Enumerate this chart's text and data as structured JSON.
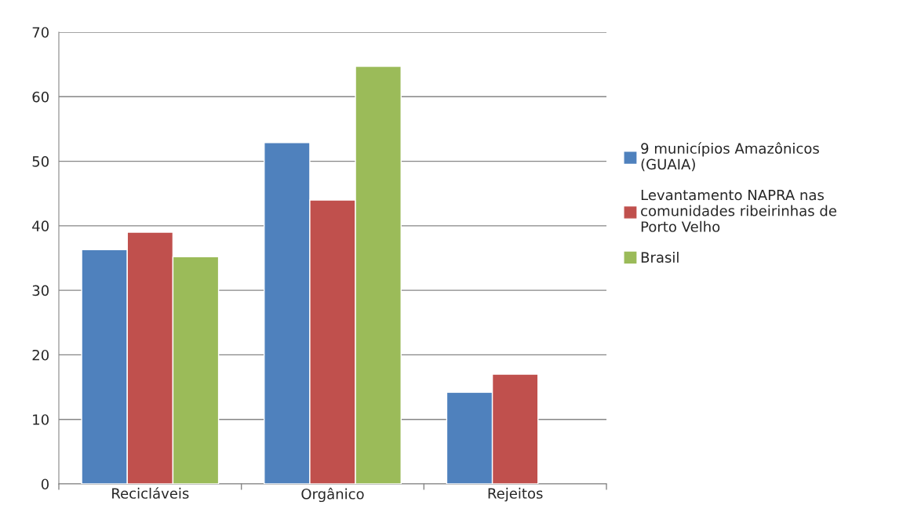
{
  "chart_data": {
    "type": "bar",
    "categories": [
      "Recicláveis",
      "Orgânico",
      "Rejeitos"
    ],
    "series": [
      {
        "name": "9 municípios Amazônicos (GUAIA)",
        "color": "#4f81bd",
        "values": [
          36.3,
          52.9,
          14.2
        ]
      },
      {
        "name": "Levantamento NAPRA nas comunidades ribeirinhas de Porto Velho",
        "color": "#c0504d",
        "values": [
          39.0,
          44.0,
          17.0
        ]
      },
      {
        "name": "Brasil",
        "color": "#9bbb59",
        "values": [
          35.2,
          64.7,
          null
        ]
      }
    ],
    "ylim": [
      0,
      70
    ],
    "yticks": [
      0,
      10,
      20,
      30,
      40,
      50,
      60,
      70
    ],
    "grid": "y",
    "legend": "right"
  }
}
